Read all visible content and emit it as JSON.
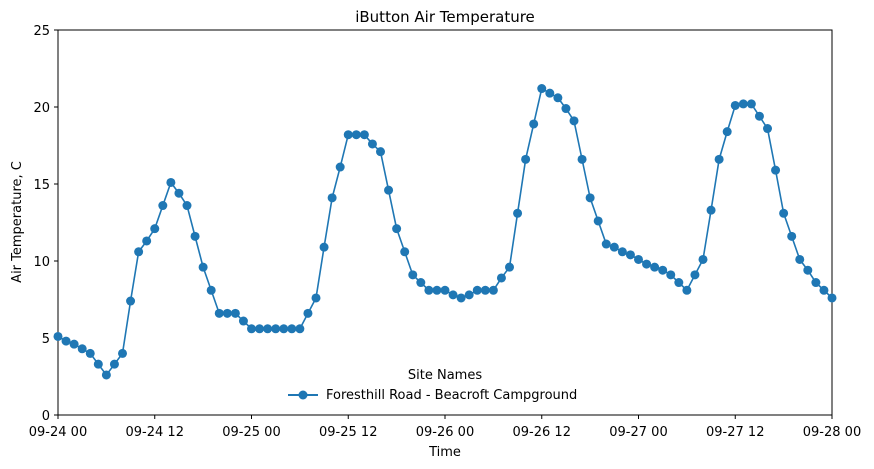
{
  "chart_data": {
    "type": "line",
    "title": "iButton Air Temperature",
    "xlabel": "Time",
    "ylabel": "Air Temperature, C",
    "ylim": [
      0,
      25
    ],
    "yticks": [
      0,
      5,
      10,
      15,
      20,
      25
    ],
    "xlim": [
      "2023-09-24 00:00",
      "2023-09-28 00:00"
    ],
    "xticks": [
      "09-24 00",
      "09-24 12",
      "09-25 00",
      "09-25 12",
      "09-26 00",
      "09-26 12",
      "09-27 00",
      "09-27 12",
      "09-28 00"
    ],
    "grid": false,
    "legend": {
      "title": "Site Names",
      "position": "lower-center"
    },
    "series": [
      {
        "name": "Foresthill Road - Beacroft Campground",
        "color": "#1f77b4",
        "marker": "circle",
        "x": [
          "2023-09-24 00:00",
          "2023-09-24 01:00",
          "2023-09-24 02:00",
          "2023-09-24 03:00",
          "2023-09-24 04:00",
          "2023-09-24 05:00",
          "2023-09-24 06:00",
          "2023-09-24 07:00",
          "2023-09-24 08:00",
          "2023-09-24 09:00",
          "2023-09-24 10:00",
          "2023-09-24 11:00",
          "2023-09-24 12:00",
          "2023-09-24 13:00",
          "2023-09-24 14:00",
          "2023-09-24 15:00",
          "2023-09-24 16:00",
          "2023-09-24 17:00",
          "2023-09-24 18:00",
          "2023-09-24 19:00",
          "2023-09-24 20:00",
          "2023-09-24 21:00",
          "2023-09-24 22:00",
          "2023-09-24 23:00",
          "2023-09-25 00:00",
          "2023-09-25 01:00",
          "2023-09-25 02:00",
          "2023-09-25 03:00",
          "2023-09-25 04:00",
          "2023-09-25 05:00",
          "2023-09-25 06:00",
          "2023-09-25 07:00",
          "2023-09-25 08:00",
          "2023-09-25 09:00",
          "2023-09-25 10:00",
          "2023-09-25 11:00",
          "2023-09-25 12:00",
          "2023-09-25 13:00",
          "2023-09-25 14:00",
          "2023-09-25 15:00",
          "2023-09-25 16:00",
          "2023-09-25 17:00",
          "2023-09-25 18:00",
          "2023-09-25 19:00",
          "2023-09-25 20:00",
          "2023-09-25 21:00",
          "2023-09-25 22:00",
          "2023-09-25 23:00",
          "2023-09-26 00:00",
          "2023-09-26 01:00",
          "2023-09-26 02:00",
          "2023-09-26 03:00",
          "2023-09-26 04:00",
          "2023-09-26 05:00",
          "2023-09-26 06:00",
          "2023-09-26 07:00",
          "2023-09-26 08:00",
          "2023-09-26 09:00",
          "2023-09-26 10:00",
          "2023-09-26 11:00",
          "2023-09-26 12:00",
          "2023-09-26 13:00",
          "2023-09-26 14:00",
          "2023-09-26 15:00",
          "2023-09-26 16:00",
          "2023-09-26 17:00",
          "2023-09-26 18:00",
          "2023-09-26 19:00",
          "2023-09-26 20:00",
          "2023-09-26 21:00",
          "2023-09-26 22:00",
          "2023-09-26 23:00",
          "2023-09-27 00:00",
          "2023-09-27 01:00",
          "2023-09-27 02:00",
          "2023-09-27 03:00",
          "2023-09-27 04:00",
          "2023-09-27 05:00",
          "2023-09-27 06:00",
          "2023-09-27 07:00",
          "2023-09-27 08:00",
          "2023-09-27 09:00",
          "2023-09-27 10:00",
          "2023-09-27 11:00",
          "2023-09-27 12:00",
          "2023-09-27 13:00",
          "2023-09-27 14:00",
          "2023-09-27 15:00",
          "2023-09-27 16:00",
          "2023-09-27 17:00",
          "2023-09-27 18:00",
          "2023-09-27 19:00",
          "2023-09-27 20:00",
          "2023-09-27 21:00",
          "2023-09-27 22:00",
          "2023-09-27 23:00",
          "2023-09-28 00:00"
        ],
        "values": [
          5.1,
          4.8,
          4.6,
          4.3,
          4.0,
          3.3,
          2.6,
          3.3,
          4.0,
          7.4,
          10.6,
          11.3,
          12.1,
          13.6,
          15.1,
          14.4,
          13.6,
          11.6,
          9.6,
          8.1,
          6.6,
          6.6,
          6.6,
          6.1,
          5.6,
          5.6,
          5.6,
          5.6,
          5.6,
          5.6,
          5.6,
          6.6,
          7.6,
          10.9,
          14.1,
          16.1,
          18.2,
          18.2,
          18.2,
          17.6,
          17.1,
          14.6,
          12.1,
          10.6,
          9.1,
          8.6,
          8.1,
          8.1,
          8.1,
          7.8,
          7.6,
          7.8,
          8.1,
          8.1,
          8.1,
          8.9,
          9.6,
          13.1,
          16.6,
          18.9,
          21.2,
          20.9,
          20.6,
          19.9,
          19.1,
          16.6,
          14.1,
          12.6,
          11.1,
          10.9,
          10.6,
          10.4,
          10.1,
          9.8,
          9.6,
          9.4,
          9.1,
          8.6,
          8.1,
          9.1,
          10.1,
          13.3,
          16.6,
          18.4,
          20.1,
          20.2,
          20.2,
          19.4,
          18.6,
          15.9,
          13.1,
          11.6,
          10.1,
          9.4,
          8.6,
          8.1,
          7.6
        ]
      }
    ]
  }
}
